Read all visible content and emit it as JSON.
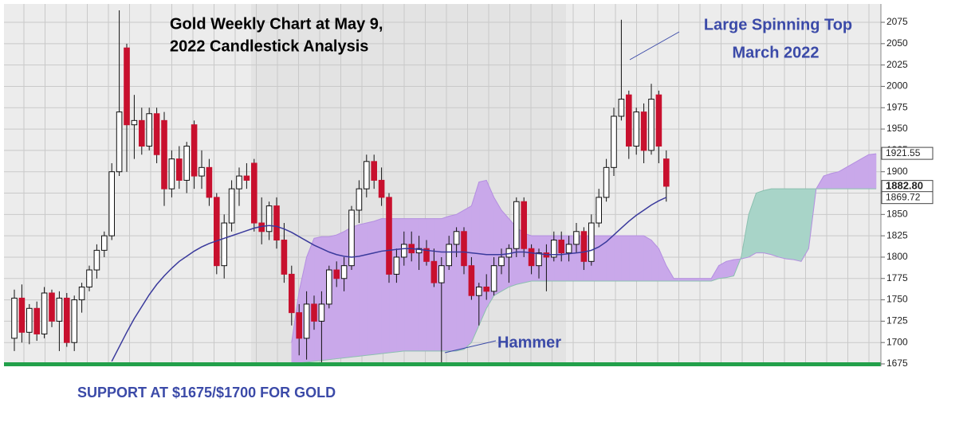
{
  "chart_data": {
    "type": "candlestick",
    "title": [
      "Gold Weekly Chart at May 9,",
      "2022  Candlestick Analysis"
    ],
    "annotations": {
      "spinning_top": [
        "Large Spinning Top",
        "March 2022"
      ],
      "hammer": "Hammer",
      "support": "SUPPORT AT $1675/$1700 FOR GOLD"
    },
    "ylim": [
      1675,
      2096
    ],
    "yticks": [
      1675,
      1700,
      1725,
      1750,
      1775,
      1800,
      1825,
      1850,
      1875,
      1900,
      1925,
      1950,
      1975,
      2000,
      2025,
      2050,
      2075
    ],
    "price_labels": [
      {
        "value": 1921.55,
        "label": "1921.55"
      },
      {
        "value": 1882.8,
        "label": "1882.80"
      },
      {
        "value": 1869.72,
        "label": "1869.72"
      }
    ],
    "up_color": "#ffffff",
    "down_color": "#c8102e",
    "ma_color": "#3a3a9c",
    "cloud_up_color": "#c9a8ea",
    "cloud_down_color": "#a8d4c8",
    "candles": [
      [
        1705,
        1762,
        1690,
        1752
      ],
      [
        1752,
        1768,
        1700,
        1712
      ],
      [
        1712,
        1745,
        1698,
        1740
      ],
      [
        1740,
        1748,
        1702,
        1710
      ],
      [
        1710,
        1765,
        1705,
        1758
      ],
      [
        1758,
        1762,
        1718,
        1725
      ],
      [
        1725,
        1760,
        1690,
        1752
      ],
      [
        1752,
        1758,
        1695,
        1700
      ],
      [
        1700,
        1755,
        1690,
        1750
      ],
      [
        1750,
        1770,
        1735,
        1765
      ],
      [
        1765,
        1790,
        1760,
        1785
      ],
      [
        1785,
        1815,
        1775,
        1808
      ],
      [
        1808,
        1830,
        1800,
        1825
      ],
      [
        1825,
        1910,
        1820,
        1900
      ],
      [
        1900,
        2089,
        1895,
        1970
      ],
      [
        2045,
        2050,
        1900,
        1955
      ],
      [
        1955,
        1990,
        1915,
        1960
      ],
      [
        1960,
        1975,
        1920,
        1930
      ],
      [
        1930,
        1975,
        1925,
        1968
      ],
      [
        1968,
        1975,
        1910,
        1920
      ],
      [
        1960,
        1970,
        1860,
        1880
      ],
      [
        1880,
        1925,
        1870,
        1915
      ],
      [
        1915,
        1930,
        1880,
        1890
      ],
      [
        1890,
        1935,
        1875,
        1930
      ],
      [
        1955,
        1960,
        1880,
        1895
      ],
      [
        1895,
        1925,
        1880,
        1905
      ],
      [
        1905,
        1915,
        1860,
        1870
      ],
      [
        1870,
        1875,
        1780,
        1790
      ],
      [
        1790,
        1850,
        1775,
        1840
      ],
      [
        1840,
        1890,
        1830,
        1880
      ],
      [
        1880,
        1905,
        1860,
        1895
      ],
      [
        1895,
        1910,
        1880,
        1890
      ],
      [
        1910,
        1915,
        1830,
        1840
      ],
      [
        1840,
        1870,
        1815,
        1830
      ],
      [
        1830,
        1865,
        1820,
        1860
      ],
      [
        1860,
        1870,
        1810,
        1820
      ],
      [
        1820,
        1840,
        1770,
        1780
      ],
      [
        1780,
        1790,
        1720,
        1735
      ],
      [
        1735,
        1745,
        1685,
        1705
      ],
      [
        1705,
        1760,
        1680,
        1745
      ],
      [
        1745,
        1755,
        1715,
        1725
      ],
      [
        1725,
        1760,
        1675,
        1745
      ],
      [
        1745,
        1790,
        1740,
        1785
      ],
      [
        1785,
        1795,
        1765,
        1775
      ],
      [
        1775,
        1800,
        1760,
        1790
      ],
      [
        1790,
        1860,
        1785,
        1855
      ],
      [
        1855,
        1890,
        1840,
        1880
      ],
      [
        1880,
        1920,
        1870,
        1912
      ],
      [
        1912,
        1920,
        1880,
        1890
      ],
      [
        1890,
        1905,
        1860,
        1870
      ],
      [
        1870,
        1875,
        1770,
        1780
      ],
      [
        1780,
        1810,
        1770,
        1800
      ],
      [
        1800,
        1830,
        1790,
        1815
      ],
      [
        1815,
        1830,
        1795,
        1805
      ],
      [
        1805,
        1825,
        1785,
        1810
      ],
      [
        1810,
        1820,
        1790,
        1795
      ],
      [
        1795,
        1810,
        1765,
        1770
      ],
      [
        1770,
        1800,
        1675,
        1790
      ],
      [
        1790,
        1825,
        1785,
        1815
      ],
      [
        1815,
        1835,
        1800,
        1830
      ],
      [
        1830,
        1835,
        1780,
        1790
      ],
      [
        1790,
        1800,
        1750,
        1755
      ],
      [
        1755,
        1770,
        1720,
        1765
      ],
      [
        1765,
        1780,
        1750,
        1760
      ],
      [
        1760,
        1800,
        1755,
        1790
      ],
      [
        1790,
        1810,
        1780,
        1800
      ],
      [
        1800,
        1815,
        1770,
        1810
      ],
      [
        1810,
        1870,
        1800,
        1865
      ],
      [
        1865,
        1870,
        1800,
        1810
      ],
      [
        1810,
        1815,
        1780,
        1790
      ],
      [
        1790,
        1810,
        1775,
        1805
      ],
      [
        1805,
        1815,
        1760,
        1800
      ],
      [
        1800,
        1830,
        1795,
        1820
      ],
      [
        1820,
        1830,
        1795,
        1805
      ],
      [
        1805,
        1825,
        1795,
        1815
      ],
      [
        1815,
        1840,
        1805,
        1830
      ],
      [
        1830,
        1835,
        1785,
        1795
      ],
      [
        1795,
        1850,
        1790,
        1840
      ],
      [
        1840,
        1880,
        1835,
        1870
      ],
      [
        1870,
        1915,
        1865,
        1905
      ],
      [
        1905,
        1975,
        1895,
        1965
      ],
      [
        1965,
        2078,
        1960,
        1985
      ],
      [
        1990,
        1995,
        1915,
        1930
      ],
      [
        1930,
        1975,
        1920,
        1970
      ],
      [
        1970,
        1980,
        1910,
        1925
      ],
      [
        1925,
        2003,
        1920,
        1985
      ],
      [
        1990,
        1995,
        1910,
        1930
      ],
      [
        1915,
        1925,
        1865,
        1883
      ]
    ],
    "ma": [
      null,
      null,
      null,
      null,
      null,
      null,
      null,
      null,
      null,
      null,
      null,
      null,
      null,
      1678,
      1695,
      1712,
      1728,
      1742,
      1756,
      1768,
      1778,
      1787,
      1795,
      1801,
      1807,
      1812,
      1816,
      1819,
      1822,
      1825,
      1828,
      1831,
      1834,
      1836,
      1837,
      1836,
      1833,
      1829,
      1824,
      1819,
      1814,
      1810,
      1806,
      1803,
      1801,
      1800,
      1801,
      1803,
      1805,
      1807,
      1808,
      1809,
      1810,
      1810,
      1809,
      1808,
      1807,
      1806,
      1806,
      1806,
      1806,
      1805,
      1804,
      1803,
      1803,
      1803,
      1804,
      1806,
      1806,
      1805,
      1804,
      1803,
      1803,
      1803,
      1804,
      1805,
      1806,
      1808,
      1812,
      1818,
      1826,
      1834,
      1842,
      1849,
      1855,
      1861,
      1866,
      1870
    ],
    "span_a": [
      null,
      null,
      null,
      null,
      null,
      null,
      null,
      null,
      null,
      null,
      null,
      null,
      null,
      null,
      null,
      null,
      null,
      null,
      null,
      null,
      null,
      null,
      null,
      null,
      null,
      null,
      null,
      null,
      null,
      null,
      null,
      null,
      null,
      null,
      null,
      null,
      null,
      1700,
      1760,
      1800,
      1822,
      1824,
      1824,
      1826,
      1830,
      1835,
      1838,
      1840,
      1842,
      1845,
      1845,
      1845,
      1845,
      1845,
      1845,
      1845,
      1845,
      1845,
      1848,
      1850,
      1855,
      1860,
      1888,
      1890,
      1870,
      1855,
      1845,
      1835,
      1828,
      1825,
      1825,
      1825,
      1825,
      1825,
      1825,
      1825,
      1825,
      1825,
      1825,
      1825,
      1825,
      1825,
      1825,
      1825,
      1825,
      1820,
      1810,
      1790,
      1775,
      1775,
      1775,
      1775,
      1775,
      1775,
      1790,
      1795,
      1797,
      1798,
      1800,
      1805,
      1805,
      1803,
      1800,
      1798,
      1797,
      1795,
      1810,
      1880,
      1895,
      1898,
      1900,
      1905,
      1910,
      1915,
      1920,
      1921
    ],
    "span_b": [
      null,
      null,
      null,
      null,
      null,
      null,
      null,
      null,
      null,
      null,
      null,
      null,
      null,
      null,
      null,
      null,
      null,
      null,
      null,
      null,
      null,
      null,
      null,
      null,
      null,
      null,
      null,
      null,
      null,
      null,
      null,
      null,
      null,
      null,
      null,
      null,
      null,
      1675,
      1676,
      1677,
      1678,
      1679,
      1680,
      1681,
      1682,
      1683,
      1684,
      1685,
      1686,
      1687,
      1688,
      1689,
      1690,
      1690,
      1690,
      1690,
      1690,
      1690,
      1690,
      1690,
      1692,
      1700,
      1720,
      1740,
      1755,
      1760,
      1765,
      1768,
      1770,
      1772,
      1772,
      1772,
      1772,
      1772,
      1772,
      1772,
      1772,
      1772,
      1772,
      1772,
      1772,
      1772,
      1772,
      1772,
      1772,
      1772,
      1772,
      1772,
      1772,
      1772,
      1772,
      1772,
      1772,
      1772,
      1775,
      1776,
      1778,
      1800,
      1850,
      1875,
      1878,
      1880,
      1880,
      1880,
      1880,
      1880,
      1880,
      1880,
      1880,
      1880,
      1880,
      1880,
      1880,
      1880,
      1880,
      1880
    ]
  }
}
